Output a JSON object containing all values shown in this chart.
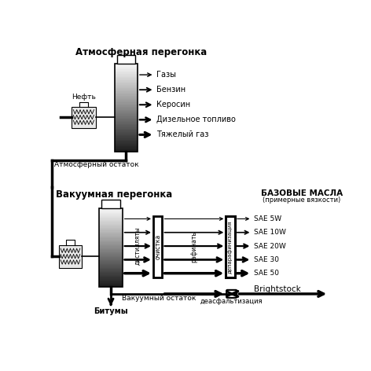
{
  "bg_color": "#ffffff",
  "atm_title": "Атмосферная перегонка",
  "vac_title": "Вакуумная перегонка",
  "oil_label": "Нефть",
  "atm_products": [
    "Газы",
    "Бензин",
    "Керосин",
    "Дизельное топливо",
    "Тяжелый газ"
  ],
  "atm_residue": "Атмосферный остаток",
  "vac_residue": "Вакуумный остаток",
  "bitums": "Битумы",
  "base_oils_title": "БАЗОВЫЕ МАСЛА",
  "base_oils_subtitle": "(примерные вязкости)",
  "distillates_label": "дистилляты",
  "clean_label": "очистка",
  "raffinates_label": "рафинаты",
  "dep_label": "депарафинизация",
  "sae_products": [
    "SAE 5W",
    "SAE 10W",
    "SAE 20W",
    "SAE 30",
    "SAE 50"
  ],
  "brightstock": "Brightstock",
  "deasphalting": "деасфальтизация"
}
